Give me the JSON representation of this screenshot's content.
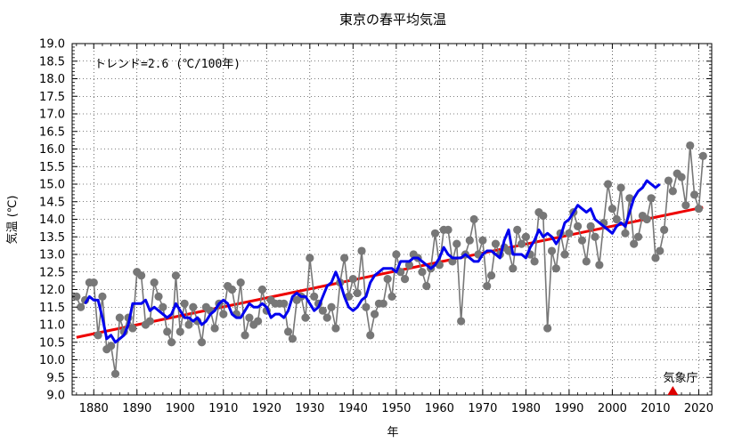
{
  "chart_data": {
    "type": "line",
    "title": "東京の春平均気温",
    "xlabel": "年",
    "ylabel": "気温 (℃)",
    "xlim": [
      1875,
      2023
    ],
    "ylim": [
      9.0,
      19.0
    ],
    "x_ticks": [
      1880,
      1890,
      1900,
      1910,
      1920,
      1930,
      1940,
      1950,
      1960,
      1970,
      1980,
      1990,
      2000,
      2010,
      2020
    ],
    "y_ticks": [
      9.0,
      9.5,
      10.0,
      10.5,
      11.0,
      11.5,
      12.0,
      12.5,
      13.0,
      13.5,
      14.0,
      14.5,
      15.0,
      15.5,
      16.0,
      16.5,
      17.0,
      17.5,
      18.0,
      18.5,
      19.0
    ],
    "y_tick_labels": [
      "9.0",
      "9.5",
      "10.0",
      "10.5",
      "11.0",
      "11.5",
      "12.0",
      "12.5",
      "13.0",
      "13.5",
      "14.0",
      "14.5",
      "15.0",
      "15.5",
      "16.0",
      "16.5",
      "17.0",
      "17.5",
      "18.0",
      "18.5",
      "19.0"
    ],
    "grid": true,
    "annotation": "トレンド=2.6 (℃/100年)",
    "credit": "気象庁",
    "colors": {
      "annual": "#777777",
      "moving_average": "#0000ee",
      "trend": "#ee0000",
      "marker": "#dd0000"
    },
    "series": [
      {
        "key": "annual",
        "type": "line+markers",
        "x_start": 1876,
        "values": [
          11.8,
          11.5,
          11.7,
          12.2,
          12.2,
          10.7,
          11.8,
          10.3,
          10.4,
          9.6,
          11.2,
          10.8,
          11.2,
          10.9,
          12.5,
          12.4,
          11.0,
          11.1,
          12.2,
          11.8,
          11.5,
          10.8,
          10.5,
          12.4,
          10.8,
          11.6,
          11.0,
          11.5,
          11.1,
          10.5,
          11.5,
          11.4,
          10.9,
          11.6,
          11.3,
          12.1,
          12.0,
          11.3,
          12.2,
          10.7,
          11.2,
          11.0,
          11.1,
          12.0,
          11.4,
          11.7,
          11.6,
          11.6,
          11.6,
          10.8,
          10.6,
          11.7,
          11.8,
          11.2,
          12.9,
          11.8,
          11.6,
          11.4,
          11.2,
          11.5,
          10.9,
          12.2,
          12.9,
          11.8,
          12.3,
          11.9,
          13.1,
          11.5,
          10.7,
          11.3,
          11.6,
          11.6,
          12.3,
          11.8,
          13.0,
          12.5,
          12.3,
          12.7,
          13.0,
          12.9,
          12.5,
          12.1,
          12.6,
          13.6,
          12.7,
          13.7,
          13.7,
          12.8,
          13.3,
          11.1,
          13.0,
          13.4,
          14.0,
          13.0,
          13.4,
          12.1,
          12.4,
          13.3,
          13.0,
          13.2,
          13.1,
          12.6,
          13.7,
          13.3,
          13.5,
          13.0,
          12.8,
          14.2,
          14.1,
          10.9,
          13.1,
          12.6,
          13.6,
          13.0,
          13.6,
          14.2,
          13.8,
          13.4,
          12.8,
          13.8,
          13.5,
          12.7,
          13.9,
          15.0,
          14.3,
          14.0,
          14.9,
          13.6,
          14.6,
          13.3,
          13.5,
          14.1,
          14.0,
          14.6,
          12.9,
          13.1,
          13.7,
          15.1,
          14.8,
          15.3,
          15.2,
          14.4,
          16.1,
          14.7,
          14.3,
          15.8
        ]
      },
      {
        "key": "moving_average",
        "type": "line",
        "x_start": 1878,
        "values": [
          11.6,
          11.8,
          11.7,
          11.7,
          11.2,
          10.6,
          10.7,
          10.5,
          10.6,
          10.7,
          11.0,
          11.6,
          11.6,
          11.6,
          11.7,
          11.4,
          11.5,
          11.4,
          11.3,
          11.2,
          11.3,
          11.6,
          11.4,
          11.2,
          11.2,
          11.1,
          11.2,
          11.0,
          11.1,
          11.3,
          11.4,
          11.6,
          11.7,
          11.6,
          11.3,
          11.2,
          11.2,
          11.4,
          11.6,
          11.5,
          11.5,
          11.6,
          11.5,
          11.2,
          11.3,
          11.3,
          11.2,
          11.4,
          11.8,
          11.9,
          11.8,
          11.8,
          11.6,
          11.4,
          11.5,
          11.8,
          12.1,
          12.2,
          12.5,
          12.2,
          11.8,
          11.5,
          11.4,
          11.5,
          11.7,
          11.8,
          12.2,
          12.4,
          12.5,
          12.6,
          12.6,
          12.6,
          12.5,
          12.8,
          12.8,
          12.8,
          12.9,
          12.9,
          12.8,
          12.7,
          12.6,
          12.7,
          12.9,
          13.2,
          13.0,
          12.9,
          12.9,
          12.9,
          13.0,
          12.9,
          12.8,
          12.8,
          13.0,
          13.1,
          13.1,
          13.0,
          12.9,
          13.4,
          13.7,
          13.0,
          13.0,
          13.0,
          12.9,
          13.2,
          13.4,
          13.7,
          13.5,
          13.6,
          13.5,
          13.3,
          13.5,
          13.9,
          14.0,
          14.2,
          14.4,
          14.3,
          14.2,
          14.3,
          14.0,
          13.9,
          13.8,
          13.7,
          13.6,
          13.8,
          13.9,
          13.8,
          14.2,
          14.6,
          14.8,
          14.9,
          15.1,
          15.0,
          14.9,
          15.0
        ]
      },
      {
        "key": "trend",
        "type": "line",
        "x": [
          1876,
          2021
        ],
        "values": [
          10.64,
          14.34
        ]
      }
    ],
    "marker": {
      "x": 2014,
      "y": 9.0
    }
  }
}
